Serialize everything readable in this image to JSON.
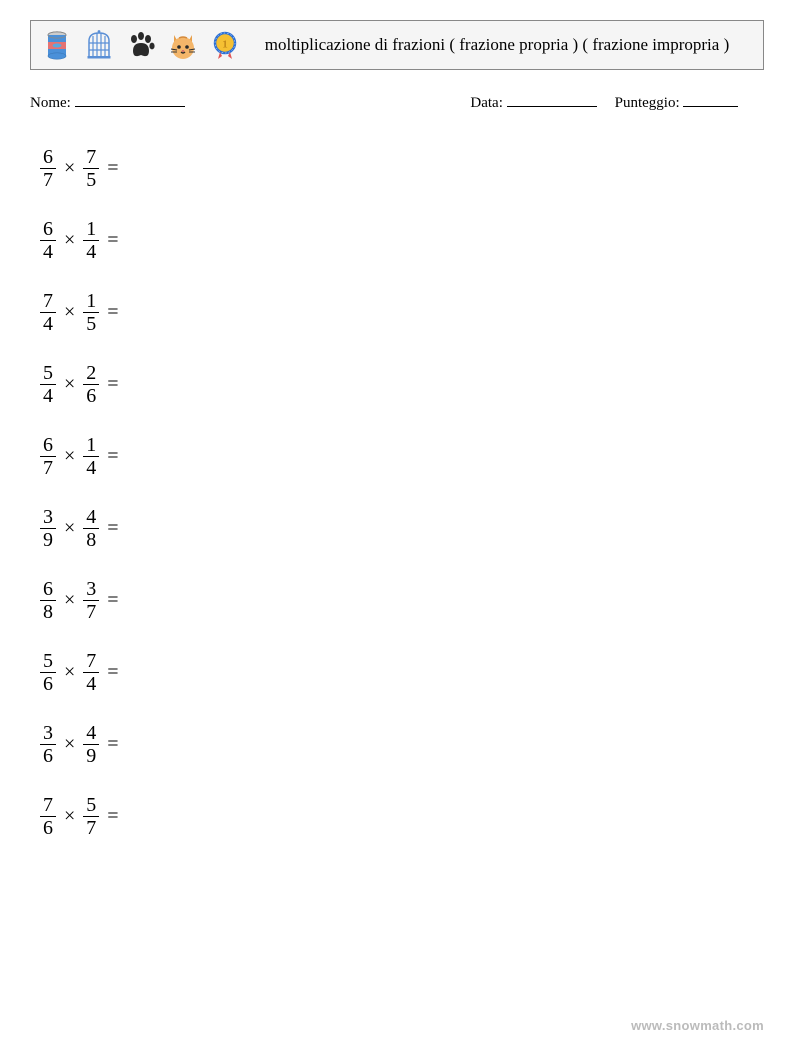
{
  "header": {
    "title": "moltiplicazione di frazioni ( frazione propria ) ( frazione impropria )",
    "icons": [
      "can-icon",
      "cage-icon",
      "paw-icon",
      "cat-icon",
      "medal-icon"
    ]
  },
  "info": {
    "name_label": "Nome:",
    "date_label": "Data:",
    "score_label": "Punteggio:",
    "name_blank_width": 110,
    "date_blank_width": 90,
    "score_blank_width": 55
  },
  "operator": "×",
  "equals": "=",
  "problems": [
    {
      "a_num": "6",
      "a_den": "7",
      "b_num": "7",
      "b_den": "5"
    },
    {
      "a_num": "6",
      "a_den": "4",
      "b_num": "1",
      "b_den": "4"
    },
    {
      "a_num": "7",
      "a_den": "4",
      "b_num": "1",
      "b_den": "5"
    },
    {
      "a_num": "5",
      "a_den": "4",
      "b_num": "2",
      "b_den": "6"
    },
    {
      "a_num": "6",
      "a_den": "7",
      "b_num": "1",
      "b_den": "4"
    },
    {
      "a_num": "3",
      "a_den": "9",
      "b_num": "4",
      "b_den": "8"
    },
    {
      "a_num": "6",
      "a_den": "8",
      "b_num": "3",
      "b_den": "7"
    },
    {
      "a_num": "5",
      "a_den": "6",
      "b_num": "7",
      "b_den": "4"
    },
    {
      "a_num": "3",
      "a_den": "6",
      "b_num": "4",
      "b_den": "9"
    },
    {
      "a_num": "7",
      "a_den": "6",
      "b_num": "5",
      "b_den": "7"
    }
  ],
  "footer": {
    "text": "www.snowmath.com"
  },
  "style": {
    "icon_colors": {
      "can": {
        "body": "#4a90d9",
        "label": "#e57373",
        "top": "#bbb"
      },
      "cage": "#5a8fd6",
      "paw": "#2a2a2a",
      "cat": {
        "face": "#f4b66a",
        "ears": "#e89f4a",
        "stripes": "#d4893a"
      },
      "medal": {
        "outer": "#2a6fd6",
        "inner": "#f5c033",
        "ribbon": "#e05555"
      }
    },
    "background": "#ffffff",
    "header_bg": "#f5f5f5",
    "text_color": "#000000",
    "footer_color": "#bbbbbb",
    "font_family": "Georgia, serif",
    "fraction_fontsize": 20,
    "header_title_fontsize": 17,
    "info_fontsize": 15,
    "problem_row_height": 72
  }
}
